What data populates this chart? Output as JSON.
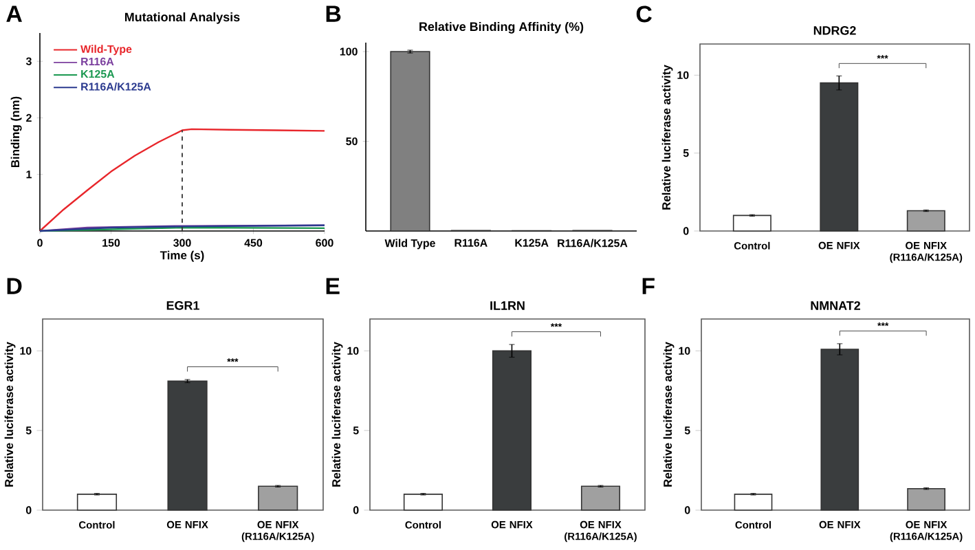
{
  "chart_data": [
    {
      "type": "line",
      "title": "Mutational Analysis",
      "xlabel": "Time (s)",
      "ylabel": "Binding (nm)",
      "annotations": [
        "A"
      ],
      "xlim": [
        0,
        600
      ],
      "ylim": [
        0,
        3.5
      ],
      "xticks": [
        0,
        150,
        300,
        450,
        600
      ],
      "yticks": [
        1,
        2,
        3
      ],
      "legend": "top left",
      "grid": false,
      "ref_lines": [
        {
          "axis": "x",
          "value": 300,
          "color": "#333333",
          "line_style": "dashed"
        }
      ],
      "series": [
        {
          "name": "Wild-Type",
          "color": "#e8262b",
          "x": [
            0,
            50,
            100,
            150,
            200,
            250,
            300,
            320,
            400,
            500,
            600
          ],
          "values": [
            0,
            0.38,
            0.72,
            1.05,
            1.33,
            1.57,
            1.78,
            1.8,
            1.79,
            1.78,
            1.77
          ]
        },
        {
          "name": "R116A",
          "color": "#7b3f9e",
          "x": [
            0,
            100,
            300,
            600
          ],
          "values": [
            0,
            0.06,
            0.09,
            0.1
          ]
        },
        {
          "name": "K125A",
          "color": "#1a9850",
          "x": [
            0,
            300,
            600
          ],
          "values": [
            0,
            0.06,
            0.05
          ]
        },
        {
          "name": "R116A/K125A",
          "color": "#2b3a8f",
          "x": [
            0,
            150,
            300,
            600
          ],
          "values": [
            0,
            0.06,
            0.08,
            0.1
          ]
        }
      ]
    },
    {
      "type": "bar",
      "title": "Relative Binding Affinity (%)",
      "annotations": [
        "B"
      ],
      "categories": [
        "Wild Type",
        "R116A",
        "K125A",
        "R116A/K125A"
      ],
      "values": [
        100,
        0.3,
        0.2,
        0.3
      ],
      "errors": [
        0.8,
        null,
        null,
        null
      ],
      "colors": [
        "#808080",
        "#808080",
        "#808080",
        "#808080"
      ],
      "ylim": [
        0,
        105
      ],
      "yticks": [
        50,
        100
      ],
      "grid": false
    },
    {
      "type": "bar",
      "title": "NDRG2",
      "ylabel": "Relative luciferase activity",
      "annotations": [
        "C",
        "***"
      ],
      "categories": [
        "Control",
        "OE NFIX",
        "OE NFIX (R116A/K125A)"
      ],
      "values": [
        1.0,
        9.5,
        1.3
      ],
      "errors": [
        0.05,
        0.45,
        0.05
      ],
      "colors": [
        "#ffffff",
        "#3a3d3e",
        "#a0a0a0"
      ],
      "ylim": [
        0,
        12
      ],
      "yticks": [
        0,
        5,
        10
      ],
      "grid": false
    },
    {
      "type": "bar",
      "title": "EGR1",
      "ylabel": "Relative luciferase activity",
      "annotations": [
        "D",
        "***"
      ],
      "categories": [
        "Control",
        "OE NFIX",
        "OE NFIX (R116A/K125A)"
      ],
      "values": [
        1.0,
        8.1,
        1.5
      ],
      "errors": [
        0.05,
        0.1,
        0.05
      ],
      "colors": [
        "#ffffff",
        "#3a3d3e",
        "#a0a0a0"
      ],
      "ylim": [
        0,
        12
      ],
      "yticks": [
        0,
        5,
        10
      ],
      "grid": false
    },
    {
      "type": "bar",
      "title": "IL1RN",
      "ylabel": "Relative luciferase activity",
      "annotations": [
        "E",
        "***"
      ],
      "categories": [
        "Control",
        "OE NFIX",
        "OE NFIX (R116A/K125A)"
      ],
      "values": [
        1.0,
        10.0,
        1.5
      ],
      "errors": [
        0.05,
        0.4,
        0.05
      ],
      "colors": [
        "#ffffff",
        "#3a3d3e",
        "#a0a0a0"
      ],
      "ylim": [
        0,
        12
      ],
      "yticks": [
        0,
        5,
        10
      ],
      "grid": false
    },
    {
      "type": "bar",
      "title": "NMNAT2",
      "ylabel": "Relative luciferase activity",
      "annotations": [
        "F",
        "***"
      ],
      "categories": [
        "Control",
        "OE NFIX",
        "OE NFIX (R116A/K125A)"
      ],
      "values": [
        1.0,
        10.1,
        1.35
      ],
      "errors": [
        0.05,
        0.35,
        0.05
      ],
      "colors": [
        "#ffffff",
        "#3a3d3e",
        "#a0a0a0"
      ],
      "ylim": [
        0,
        12
      ],
      "yticks": [
        0,
        5,
        10
      ],
      "grid": false
    }
  ]
}
